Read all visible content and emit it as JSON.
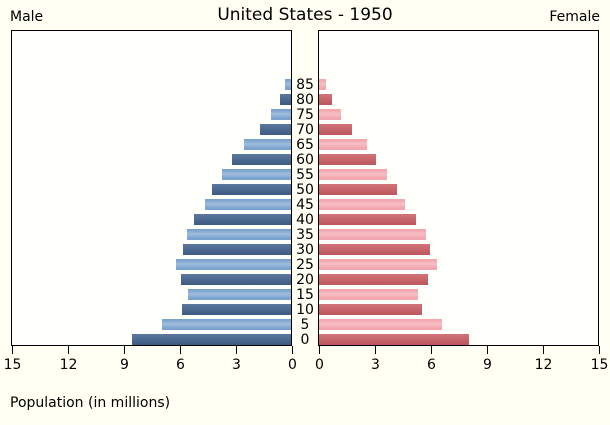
{
  "title": "United States - 1950",
  "male_label": "Male",
  "female_label": "Female",
  "axis_label": "Population (in millions)",
  "colors": {
    "male_dark": "#41618c",
    "male_light": "#7ba3cf",
    "female_dark": "#c95d63",
    "female_light": "#f3a6ae",
    "axis_line": "#000000",
    "background": "#fffff4"
  },
  "chart_data": {
    "type": "bar",
    "subtype": "population-pyramid",
    "title": "United States - 1950",
    "xlabel": "Population (in millions)",
    "unit": "millions",
    "xlim": [
      0,
      15
    ],
    "x_ticks": [
      0,
      3,
      6,
      9,
      12,
      15
    ],
    "grid": false,
    "legend": "none",
    "age_group_labels": [
      "0",
      "5",
      "10",
      "15",
      "20",
      "25",
      "30",
      "35",
      "40",
      "45",
      "50",
      "55",
      "60",
      "65",
      "70",
      "75",
      "80",
      "85"
    ],
    "series": [
      {
        "name": "Male",
        "side": "left",
        "values": [
          8.5,
          6.9,
          5.85,
          5.5,
          5.9,
          6.15,
          5.8,
          5.6,
          5.2,
          4.6,
          4.25,
          3.7,
          3.15,
          2.5,
          1.65,
          1.05,
          0.6,
          0.3
        ]
      },
      {
        "name": "Female",
        "side": "right",
        "values": [
          8.05,
          6.6,
          5.5,
          5.3,
          5.85,
          6.3,
          5.95,
          5.75,
          5.2,
          4.6,
          4.2,
          3.65,
          3.05,
          2.55,
          1.75,
          1.2,
          0.7,
          0.35
        ]
      }
    ]
  }
}
